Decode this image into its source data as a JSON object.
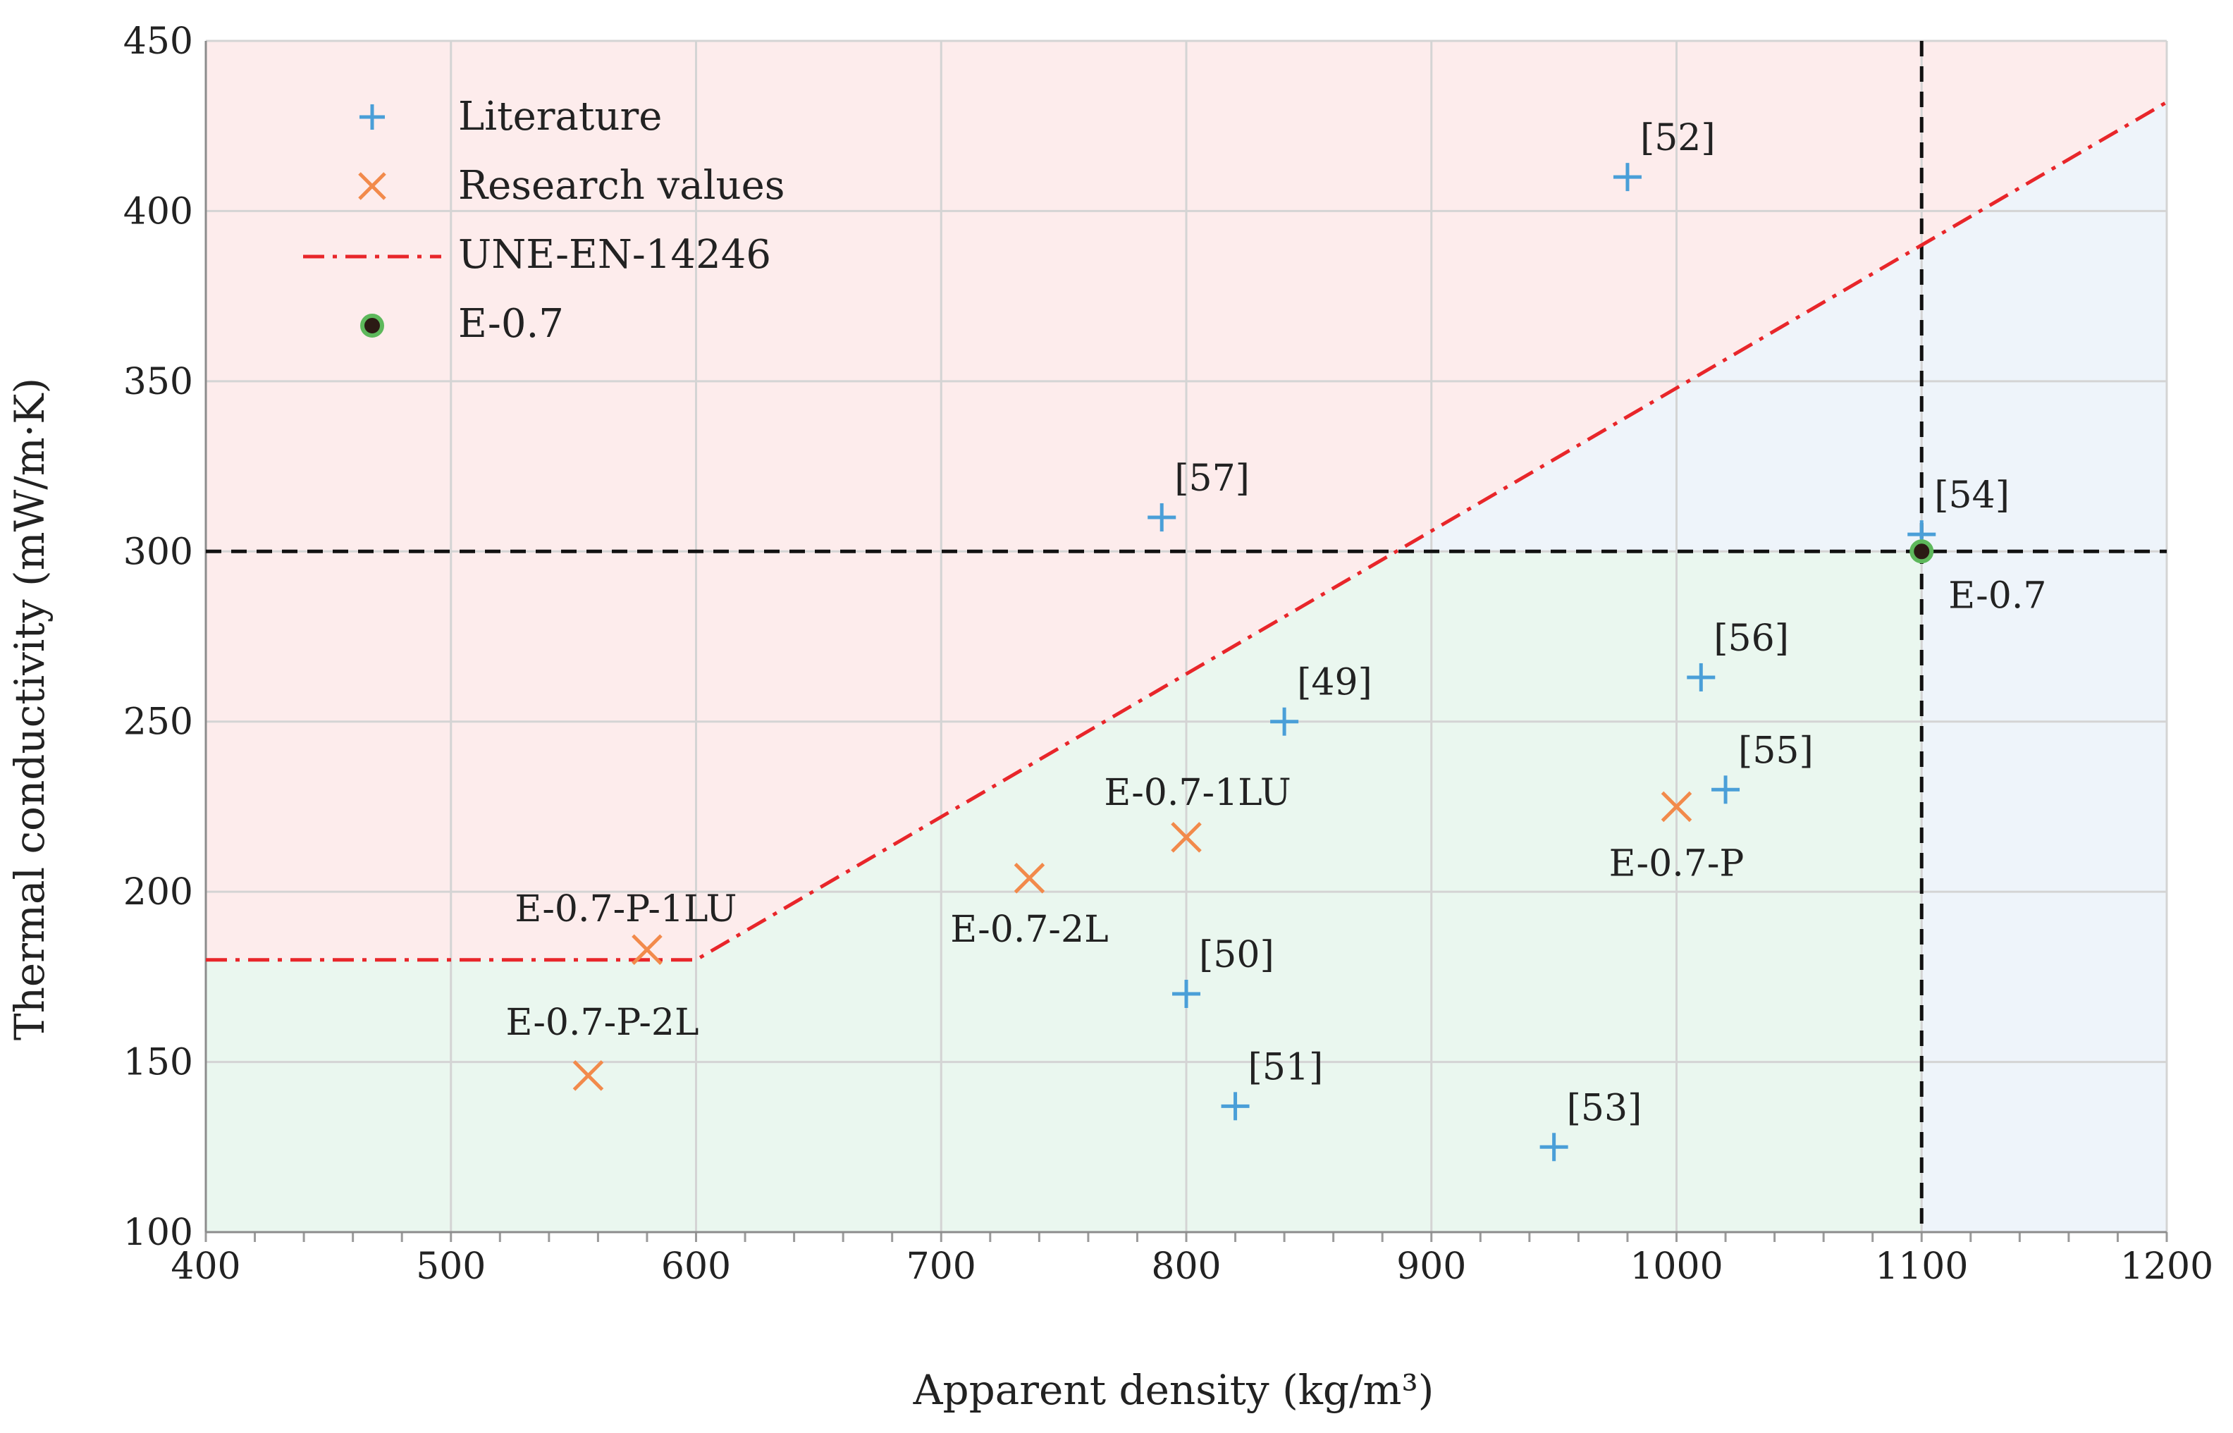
{
  "chart_data": {
    "type": "scatter",
    "xlabel": "Apparent density (kg/m³)",
    "ylabel": "Thermal conductivity (mW/m·K)",
    "xlim": [
      400,
      1200
    ],
    "ylim": [
      100,
      450
    ],
    "xticks": [
      400,
      500,
      600,
      700,
      800,
      900,
      1000,
      1100,
      1200
    ],
    "yticks": [
      100,
      150,
      200,
      250,
      300,
      350,
      400,
      450
    ],
    "grid": true,
    "legend_position": "top-left",
    "colors": {
      "literature": "#4A9FD8",
      "research": "#F28A4B",
      "standard_line": "#E8262A",
      "e07_fill": "#2B1A14",
      "e07_ring": "#5DB85B",
      "region_red": "#FDECEC",
      "region_green": "#EAF7EF",
      "region_blue": "#EEF4FA",
      "grid": "#D4D4D4",
      "threshold": "#111111"
    },
    "legend": {
      "literature": "Literature",
      "research": "Research values",
      "standard": "UNE-EN-14246",
      "e07": "E-0.7"
    },
    "literature": [
      {
        "label": "[49]",
        "x": 840,
        "y": 250
      },
      {
        "label": "[50]",
        "x": 800,
        "y": 170
      },
      {
        "label": "[51]",
        "x": 820,
        "y": 137
      },
      {
        "label": "[52]",
        "x": 980,
        "y": 410
      },
      {
        "label": "[53]",
        "x": 950,
        "y": 125
      },
      {
        "label": "[54]",
        "x": 1100,
        "y": 305
      },
      {
        "label": "[55]",
        "x": 1020,
        "y": 230
      },
      {
        "label": "[56]",
        "x": 1010,
        "y": 263
      },
      {
        "label": "[57]",
        "x": 790,
        "y": 310
      }
    ],
    "research": [
      {
        "label": "E-0.7-P-1LU",
        "x": 580,
        "y": 183
      },
      {
        "label": "E-0.7-P-2L",
        "x": 556,
        "y": 146
      },
      {
        "label": "E-0.7-2L",
        "x": 736,
        "y": 204
      },
      {
        "label": "E-0.7-1LU",
        "x": 800,
        "y": 216
      },
      {
        "label": "E-0.7-P",
        "x": 1000,
        "y": 225
      }
    ],
    "e07": {
      "label": "E-0.7",
      "x": 1100,
      "y": 300
    },
    "standard_line": [
      {
        "x": 400,
        "y": 180
      },
      {
        "x": 600,
        "y": 180
      },
      {
        "x": 1200,
        "y": 432
      }
    ],
    "thresholds": {
      "x": 1100,
      "y": 300
    }
  }
}
